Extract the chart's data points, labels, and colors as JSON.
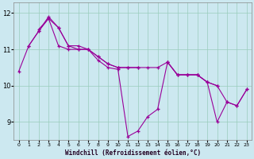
{
  "xlabel": "Windchill (Refroidissement éolien,°C)",
  "background_color": "#cce8f0",
  "grid_color": "#99ccbb",
  "line_color": "#990099",
  "xlim": [
    -0.5,
    23.5
  ],
  "ylim": [
    8.5,
    12.3
  ],
  "yticks": [
    9,
    10,
    11,
    12
  ],
  "xticks": [
    0,
    1,
    2,
    3,
    4,
    5,
    6,
    7,
    8,
    9,
    10,
    11,
    12,
    13,
    14,
    15,
    16,
    17,
    18,
    19,
    20,
    21,
    22,
    23
  ],
  "series": [
    [
      10.4,
      11.1,
      11.5,
      11.9,
      11.6,
      11.1,
      11.1,
      11.0,
      10.7,
      10.5,
      10.45,
      8.6,
      8.75,
      9.15,
      9.35,
      10.65,
      10.3,
      10.3,
      10.3,
      10.1,
      9.0,
      9.55,
      9.45,
      9.9
    ],
    [
      null,
      null,
      11.55,
      11.85,
      11.6,
      11.1,
      11.0,
      11.0,
      10.8,
      10.6,
      10.5,
      10.5,
      10.5,
      null,
      null,
      null,
      null,
      null,
      null,
      null,
      null,
      null,
      null,
      null
    ],
    [
      null,
      null,
      null,
      null,
      null,
      null,
      null,
      null,
      null,
      null,
      10.5,
      10.5,
      10.5,
      10.5,
      10.5,
      10.65,
      10.3,
      10.3,
      10.3,
      10.1,
      10.0,
      null,
      null,
      null
    ],
    [
      null,
      11.1,
      11.5,
      11.85,
      11.1,
      11.0,
      11.0,
      11.0,
      10.8,
      10.6,
      10.5,
      null,
      null,
      null,
      null,
      10.65,
      10.3,
      10.3,
      10.3,
      10.1,
      10.0,
      9.55,
      9.45,
      9.9
    ]
  ]
}
